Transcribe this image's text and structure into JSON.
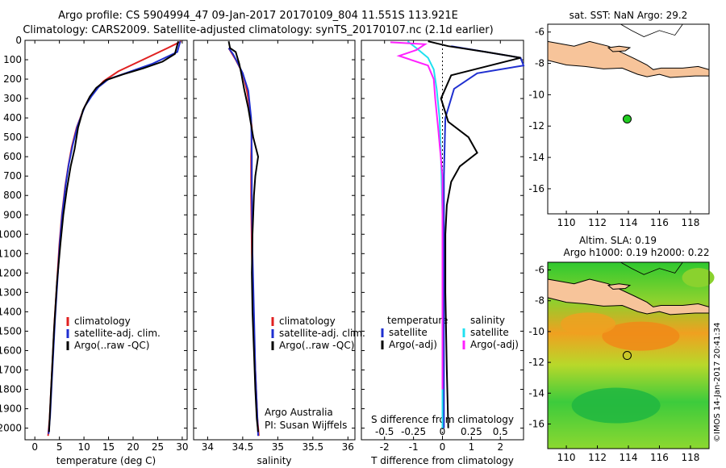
{
  "header": {
    "line1": "Argo profile: CS 5904994_47 09-Jan-2017 20170109_804 11.551S 113.921E",
    "line2": "Climatology: CARS2009. Satellite-adjusted climatology: synTS_20170107.nc (2.1d earlier)"
  },
  "colors": {
    "climatology": "#e02020",
    "satellite": "#1f2fd0",
    "argo": "#000000",
    "argo_salinity": "#ff20ff",
    "satellite_salinity": "#20e0f0",
    "land": "#f7c49a",
    "float_marker": "#22cc22"
  },
  "depth_ticks": [
    "0",
    "100",
    "200",
    "300",
    "400",
    "500",
    "600",
    "700",
    "800",
    "900",
    "1000",
    "1100",
    "1200",
    "1300",
    "1400",
    "1500",
    "1600",
    "1700",
    "1800",
    "1900",
    "2000"
  ],
  "panels": {
    "temperature": {
      "xlabel": "temperature (deg C)",
      "xticks": [
        "0",
        "5",
        "10",
        "15",
        "20",
        "25",
        "30"
      ],
      "legend": [
        "climatology",
        "satellite-adj. clim.",
        "Argo(..raw -QC)"
      ]
    },
    "salinity": {
      "xlabel": "salinity",
      "xticks": [
        "34",
        "34.5",
        "35",
        "35.5",
        "36"
      ],
      "legend": [
        "climatology",
        "satellite-adj. clim.",
        "Argo(..raw -QC)"
      ],
      "credit1": "Argo Australia",
      "credit2": "PI: Susan Wijffels"
    },
    "difference": {
      "xlabel": "T difference from climatology",
      "xlabel_top": "S difference from climatology",
      "xticks": [
        "-2",
        "-1",
        "0",
        "1",
        "2"
      ],
      "xticks_top": [
        "-0.5",
        "-0.25",
        "0",
        "0.25",
        "0.5"
      ],
      "legend_temp_title": "temperature",
      "legend_sal_title": "salinity",
      "legend_items": [
        "satellite",
        "Argo(-adj)",
        "satellite",
        "Argo(-adj)"
      ]
    },
    "map_sst": {
      "title": "sat. SST: NaN Argo: 29.2",
      "yticks": [
        "-6",
        "-8",
        "-10",
        "-12",
        "-14",
        "-16"
      ],
      "xticks": [
        "110",
        "112",
        "114",
        "116",
        "118"
      ]
    },
    "map_sla": {
      "title1": "Altim. SLA: 0.19",
      "title2": "Argo h1000: 0.19 h2000: 0.22",
      "yticks": [
        "-6",
        "-8",
        "-10",
        "-12",
        "-14",
        "-16"
      ],
      "xticks": [
        "110",
        "112",
        "114",
        "116",
        "118"
      ]
    }
  },
  "stamp": "©IMOS 14-Jan-2017 20:41:34",
  "chart_data": [
    {
      "type": "line",
      "title": "",
      "xlabel": "temperature (deg C)",
      "ylabel": "",
      "xlim": [
        -2,
        31
      ],
      "ylim": [
        2060,
        0
      ],
      "series": [
        {
          "name": "climatology",
          "color": "#e02020",
          "x": [
            29.8,
            27,
            22,
            17,
            14,
            12.5,
            11,
            10,
            8.5,
            7.5,
            6.8,
            6.2,
            5.5,
            5,
            4.5,
            4,
            3.5,
            3,
            2.7
          ],
          "y": [
            5,
            40,
            100,
            160,
            210,
            250,
            300,
            350,
            450,
            550,
            650,
            750,
            900,
            1050,
            1250,
            1450,
            1700,
            1950,
            2040
          ]
        },
        {
          "name": "satellite-adj. clim.",
          "color": "#1f2fd0",
          "x": [
            29.6,
            29,
            24,
            19,
            15,
            13,
            11.5,
            10.2,
            8.7,
            7.7,
            6.9,
            6.3,
            5.6,
            5.1,
            4.6,
            4.1,
            3.6,
            3.1,
            2.8
          ],
          "y": [
            5,
            60,
            120,
            165,
            200,
            240,
            290,
            340,
            440,
            540,
            640,
            740,
            890,
            1040,
            1240,
            1440,
            1690,
            1940,
            2030
          ]
        },
        {
          "name": "Argo(..raw -QC)",
          "color": "#000000",
          "x": [
            29.2,
            28.5,
            26,
            22,
            18,
            14.5,
            12.5,
            11.2,
            9.8,
            8.8,
            8.1,
            7.3,
            6.5,
            5.8,
            5.2,
            4.5,
            3.9,
            3.3,
            2.9
          ],
          "y": [
            5,
            70,
            110,
            145,
            175,
            205,
            245,
            290,
            360,
            450,
            560,
            650,
            770,
            900,
            1050,
            1250,
            1500,
            1800,
            2020
          ]
        }
      ]
    },
    {
      "type": "line",
      "title": "",
      "xlabel": "salinity",
      "ylabel": "",
      "xlim": [
        33.8,
        36.1
      ],
      "ylim": [
        2060,
        0
      ],
      "series": [
        {
          "name": "climatology",
          "color": "#e02020",
          "x": [
            34.3,
            34.4,
            34.5,
            34.56,
            34.6,
            34.63,
            34.62,
            34.62,
            34.63,
            34.65,
            34.68,
            34.71,
            34.73
          ],
          "y": [
            40,
            100,
            170,
            260,
            350,
            450,
            600,
            800,
            1100,
            1400,
            1700,
            1950,
            2040
          ]
        },
        {
          "name": "satellite-adj. clim.",
          "color": "#1f2fd0",
          "x": [
            34.3,
            34.36,
            34.42,
            34.5,
            34.58,
            34.62,
            34.63,
            34.63,
            34.64,
            34.66,
            34.68,
            34.71,
            34.72
          ],
          "y": [
            40,
            70,
            110,
            170,
            260,
            400,
            600,
            800,
            1100,
            1400,
            1700,
            1950,
            2040
          ]
        },
        {
          "name": "Argo(..raw -QC)",
          "color": "#000000",
          "x": [
            34.3,
            34.32,
            34.4,
            34.45,
            34.48,
            34.52,
            34.58,
            34.65,
            34.72,
            34.68,
            34.66,
            34.64,
            34.63,
            34.64,
            34.66,
            34.68,
            34.7,
            34.72
          ],
          "y": [
            5,
            40,
            60,
            120,
            170,
            250,
            350,
            500,
            600,
            700,
            800,
            1000,
            1200,
            1400,
            1600,
            1800,
            1950,
            2020
          ]
        }
      ]
    },
    {
      "type": "line",
      "title": "",
      "xlabel": "T difference from climatology",
      "ylabel": "",
      "xlim": [
        -2.8,
        2.8
      ],
      "ylim": [
        2060,
        0
      ],
      "series": [
        {
          "name": "satellite",
          "color": "#1f2fd0",
          "x": [
            0.3,
            1.5,
            2.7,
            2.8,
            1.2,
            0.4,
            0.1,
            0.05,
            0.05,
            0.05,
            0.05,
            0.05
          ],
          "y": [
            30,
            60,
            90,
            130,
            170,
            250,
            400,
            700,
            1000,
            1400,
            1800,
            2000
          ]
        },
        {
          "name": "Argo(-adj)",
          "color": "#000000",
          "x": [
            -0.5,
            0.2,
            1.5,
            2.7,
            0.3,
            -0.05,
            0.2,
            0.9,
            1.2,
            0.6,
            0.3,
            0.15,
            0.1,
            0.1,
            0.15,
            0.2
          ],
          "y": [
            5,
            30,
            60,
            90,
            180,
            300,
            420,
            500,
            580,
            650,
            730,
            850,
            1000,
            1300,
            1700,
            2000
          ]
        },
        {
          "name": "satellite (salinity)",
          "color": "#20e0f0",
          "x": [
            -1.2,
            -0.9,
            -0.5,
            -0.3,
            -0.2,
            -0.1,
            -0.05,
            0,
            0,
            0
          ],
          "y": [
            5,
            40,
            90,
            150,
            250,
            400,
            600,
            900,
            1400,
            2000
          ]
        },
        {
          "name": "Argo(-adj) (salinity)",
          "color": "#ff20ff",
          "x": [
            -1.8,
            -0.6,
            -0.9,
            -1.5,
            -0.5,
            -0.3,
            -0.25,
            -0.15,
            0,
            0,
            0
          ],
          "y": [
            10,
            20,
            50,
            80,
            130,
            200,
            300,
            450,
            700,
            1400,
            1800
          ]
        }
      ]
    },
    {
      "type": "scatter",
      "title": "sat. SST: NaN Argo: 29.2",
      "xlim": [
        108.8,
        119.2
      ],
      "ylim": [
        -17.6,
        -5.5
      ],
      "points": [
        {
          "x": 113.921,
          "y": -11.551
        }
      ]
    },
    {
      "type": "heatmap",
      "title": "Altim. SLA: 0.19 | Argo h1000: 0.19 h2000: 0.22",
      "xlim": [
        108.8,
        119.2
      ],
      "ylim": [
        -17.6,
        -5.5
      ],
      "points": [
        {
          "x": 113.921,
          "y": -11.551
        }
      ]
    }
  ]
}
